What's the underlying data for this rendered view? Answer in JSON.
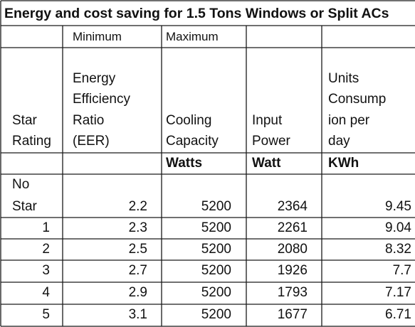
{
  "title": "Energy and cost saving for 1.5 Tons Windows or Split ACs",
  "subheaders": {
    "minimum": "Minimum",
    "maximum": "Maximum"
  },
  "columns": {
    "star": [
      "Star",
      "Rating"
    ],
    "eer": [
      "Energy",
      "Efficiency",
      "Ratio",
      "(EER)"
    ],
    "cooling": [
      "Cooling",
      "Capacity"
    ],
    "input": [
      "Input",
      "Power"
    ],
    "units": [
      "Units",
      "Consump",
      "ion per",
      "day"
    ]
  },
  "units": {
    "cooling": "Watts",
    "input": "Watt",
    "units": "KWh"
  },
  "rows": [
    {
      "star": [
        "No",
        "Star"
      ],
      "eer": "2.2",
      "cooling": "5200",
      "input": "2364",
      "units": "9.45"
    },
    {
      "star": [
        "1"
      ],
      "eer": "2.3",
      "cooling": "5200",
      "input": "2261",
      "units": "9.04"
    },
    {
      "star": [
        "2"
      ],
      "eer": "2.5",
      "cooling": "5200",
      "input": "2080",
      "units": "8.32"
    },
    {
      "star": [
        "3"
      ],
      "eer": "2.7",
      "cooling": "5200",
      "input": "1926",
      "units": "7.7"
    },
    {
      "star": [
        "4"
      ],
      "eer": "2.9",
      "cooling": "5200",
      "input": "1793",
      "units": "7.17"
    },
    {
      "star": [
        "5"
      ],
      "eer": "3.1",
      "cooling": "5200",
      "input": "1677",
      "units": "6.71"
    }
  ]
}
